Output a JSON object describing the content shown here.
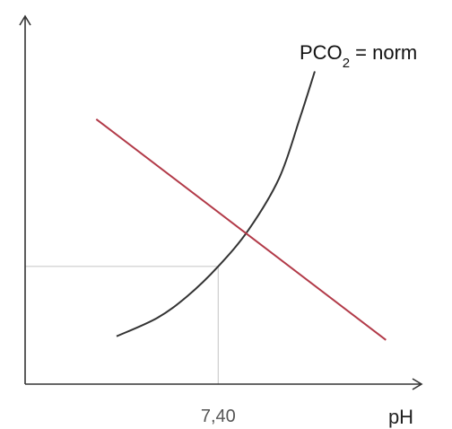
{
  "chart_data": {
    "type": "line",
    "title": "",
    "xlabel": "pH",
    "ylabel": "",
    "x_ticks": [
      {
        "value": 7.4,
        "label": "7,40"
      }
    ],
    "grid": false,
    "series": [
      {
        "kind": "curve",
        "color": "#333333",
        "label_prefix": "PCO",
        "label_sub": "2",
        "label_suffix": " = norm",
        "points": [
          [
            7.2,
            0.13
          ],
          [
            7.28,
            0.18
          ],
          [
            7.34,
            0.24
          ],
          [
            7.4,
            0.32
          ],
          [
            7.46,
            0.42
          ],
          [
            7.52,
            0.56
          ],
          [
            7.56,
            0.72
          ],
          [
            7.59,
            0.85
          ]
        ]
      },
      {
        "kind": "line",
        "color": "#b23a48",
        "points": [
          [
            7.16,
            0.72
          ],
          [
            7.73,
            0.12
          ]
        ]
      }
    ],
    "reference_lines": {
      "color": "#cccccc",
      "x": 7.4,
      "y": 0.32
    },
    "xlim": [
      7.02,
      7.8
    ],
    "ylim": [
      0.0,
      1.0
    ]
  }
}
